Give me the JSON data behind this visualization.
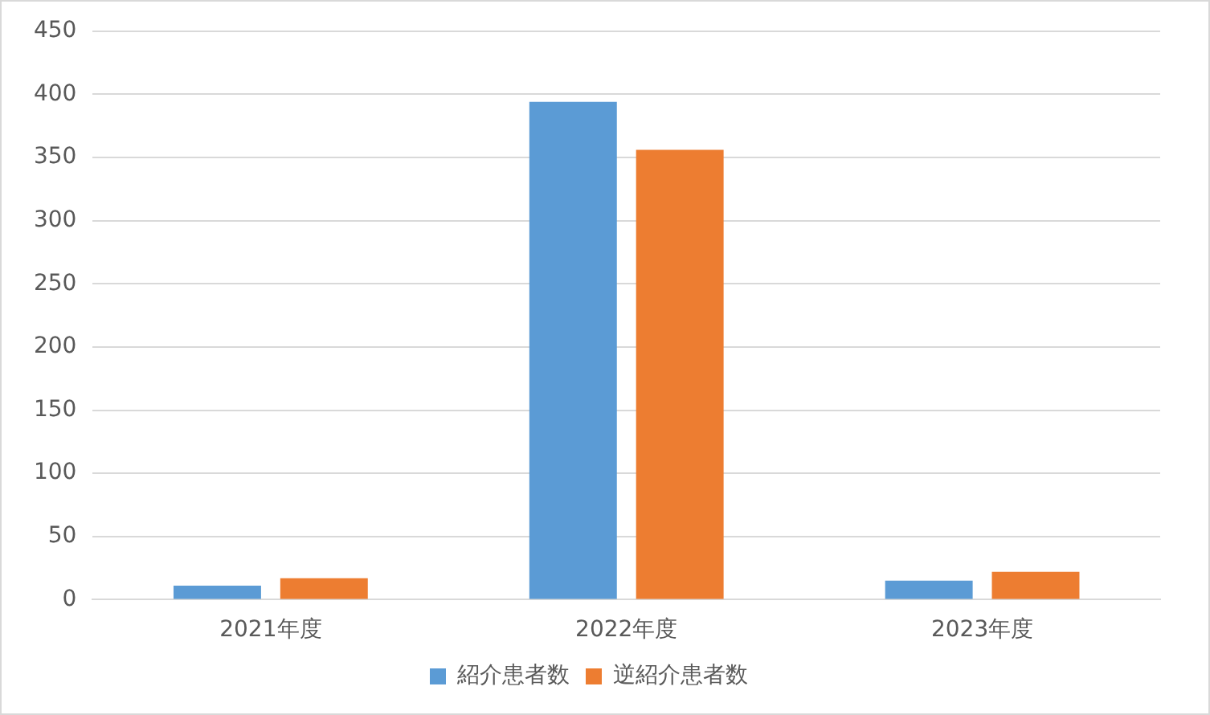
{
  "chart_data": {
    "type": "bar",
    "categories": [
      "2021年度",
      "2022年度",
      "2023年度"
    ],
    "series": [
      {
        "name": "紹介患者数",
        "color": "#5b9bd5",
        "values": [
          11,
          394,
          15
        ]
      },
      {
        "name": "逆紹介患者数",
        "color": "#ed7d31",
        "values": [
          17,
          356,
          22
        ]
      }
    ],
    "ylim": [
      0,
      450
    ],
    "yticks": [
      0,
      50,
      100,
      150,
      200,
      250,
      300,
      350,
      400,
      450
    ],
    "grid": "y",
    "legend": "bottom"
  }
}
